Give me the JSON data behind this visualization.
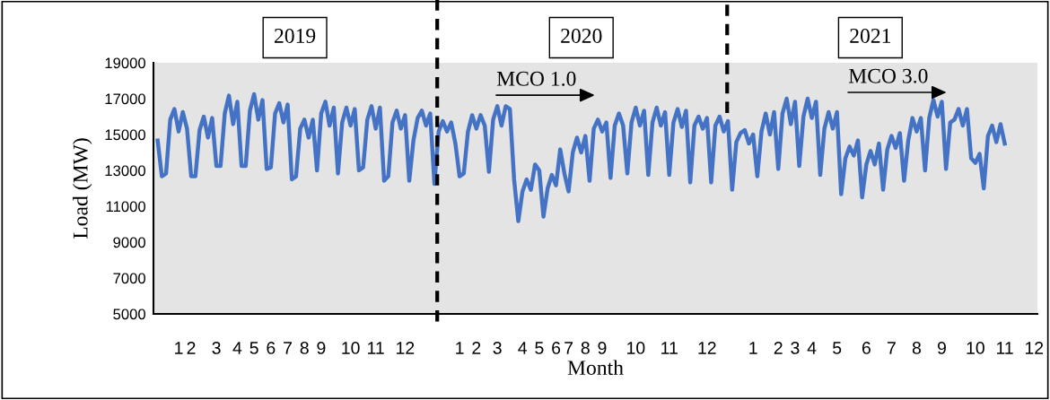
{
  "chart_data": {
    "type": "line",
    "xlabel": "Month",
    "ylabel": "Load (MW)",
    "categories": [
      null,
      null,
      null,
      null,
      null,
      "1",
      null,
      null,
      "2",
      null,
      null,
      null,
      null,
      null,
      "3",
      null,
      null,
      null,
      null,
      "4",
      null,
      null,
      null,
      "5",
      null,
      null,
      null,
      "6",
      null,
      null,
      null,
      "7",
      null,
      null,
      null,
      "8",
      null,
      null,
      null,
      "9",
      null,
      null,
      null,
      null,
      null,
      null,
      "10",
      null,
      null,
      null,
      null,
      null,
      "11",
      null,
      null,
      null,
      null,
      null,
      null,
      "12",
      null,
      null,
      null,
      null,
      null,
      null,
      null,
      null,
      null,
      null,
      null,
      null,
      "1",
      null,
      null,
      null,
      "2",
      null,
      null,
      null,
      null,
      "3",
      null,
      null,
      null,
      null,
      null,
      "4",
      null,
      null,
      null,
      "5",
      null,
      null,
      null,
      "6",
      null,
      null,
      "7",
      null,
      null,
      null,
      "8",
      null,
      null,
      null,
      "9",
      null,
      null,
      null,
      null,
      null,
      null,
      null,
      "10",
      null,
      null,
      null,
      null,
      null,
      null,
      null,
      "11",
      null,
      null,
      null,
      null,
      null,
      null,
      null,
      null,
      "12",
      null,
      null,
      null,
      null,
      null,
      null,
      null,
      null,
      null,
      null,
      "1",
      null,
      null,
      null,
      null,
      null,
      "2",
      null,
      null,
      null,
      "3",
      null,
      null,
      null,
      "4",
      null,
      null,
      null,
      null,
      null,
      "5",
      null,
      null,
      null,
      null,
      null,
      null,
      "6",
      null,
      null,
      null,
      null,
      null,
      "7",
      null,
      null,
      null,
      null,
      null,
      "8",
      null,
      null,
      null,
      null,
      null,
      "9",
      null,
      null,
      null,
      null,
      null,
      null,
      null,
      "10",
      null,
      null,
      null,
      null,
      null,
      null,
      "11",
      null,
      null,
      null,
      null,
      null,
      null,
      "12"
    ],
    "series": [
      {
        "color": "#4472c4",
        "values": [
          14670,
          12670,
          12830,
          15830,
          16420,
          15170,
          16250,
          15330,
          12670,
          12670,
          15250,
          16000,
          14830,
          15920,
          13250,
          13250,
          16170,
          17170,
          15580,
          16830,
          13250,
          13250,
          16330,
          17250,
          15830,
          16920,
          13080,
          13170,
          16170,
          16750,
          15670,
          16670,
          12500,
          12670,
          15330,
          15830,
          14830,
          15830,
          13000,
          16170,
          16830,
          15500,
          16500,
          12830,
          15670,
          16500,
          15500,
          16420,
          13000,
          13170,
          15830,
          16580,
          15330,
          16500,
          12420,
          12670,
          15670,
          16330,
          15330,
          16080,
          12420,
          14670,
          15920,
          16330,
          15500,
          16170,
          12250,
          15170,
          15750,
          15170,
          15670,
          14500,
          12670,
          12830,
          15170,
          16080,
          15330,
          16080,
          15500,
          12920,
          15830,
          16580,
          15500,
          16580,
          16420,
          12500,
          10170,
          11830,
          12500,
          11920,
          13330,
          13000,
          10420,
          12000,
          12750,
          12170,
          14170,
          12830,
          11830,
          14000,
          14830,
          14000,
          14920,
          12420,
          15330,
          15830,
          15170,
          15670,
          12580,
          15500,
          16170,
          15500,
          12830,
          15670,
          16500,
          15500,
          16330,
          12750,
          15670,
          16500,
          15500,
          16250,
          12750,
          15670,
          16420,
          15420,
          16330,
          12330,
          15500,
          16000,
          15330,
          15920,
          12330,
          15500,
          16000,
          15170,
          15750,
          11920,
          14580,
          15080,
          15250,
          14500,
          15000,
          12670,
          15170,
          16170,
          15000,
          16250,
          13080,
          16170,
          17000,
          15580,
          16830,
          13250,
          16000,
          17000,
          15920,
          16830,
          12750,
          15330,
          16250,
          15330,
          16250,
          11670,
          13670,
          14330,
          13830,
          14670,
          11500,
          13330,
          14080,
          13330,
          14500,
          11920,
          14170,
          14920,
          14250,
          15080,
          12420,
          14670,
          15920,
          15170,
          15920,
          13000,
          15920,
          16920,
          16000,
          16830,
          13080,
          15670,
          15830,
          16420,
          15500,
          16420,
          13670,
          13420,
          13920,
          12000,
          14920,
          15500,
          14580,
          15580,
          14500,
          null,
          null,
          null,
          null,
          null,
          null,
          null
        ]
      }
    ],
    "ylim": [
      5000,
      19000
    ],
    "yticks": [
      5000,
      7000,
      9000,
      11000,
      13000,
      15000,
      17000,
      19000
    ],
    "annotations": [
      "2019",
      "2020",
      "2021",
      "MCO 1.0",
      "MCO 3.0"
    ],
    "grid": false,
    "legend": false,
    "marker": "none",
    "line_style": "solid"
  }
}
